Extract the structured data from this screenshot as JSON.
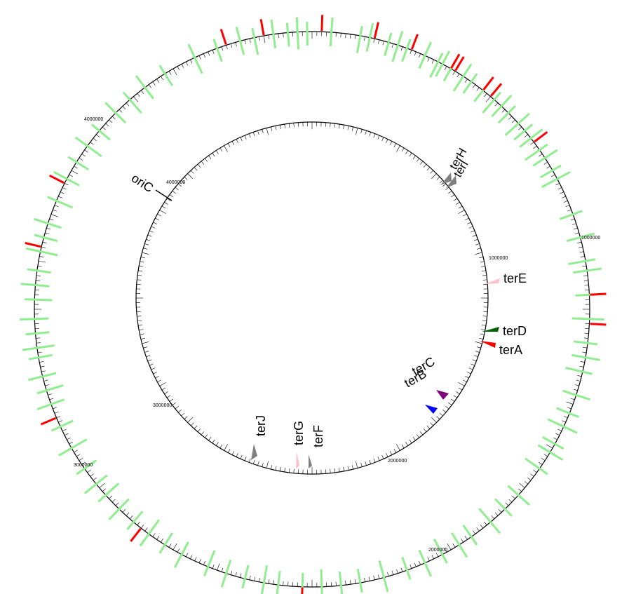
{
  "outer_map": {
    "tick_labels": [
      "1000000",
      "2000000",
      "3000000",
      "4000000"
    ],
    "colors": {
      "ring": "#000000",
      "green_feature": "#90ee90",
      "red_feature": "#ff0000"
    }
  },
  "inner_map": {
    "tick_labels": [
      "1000000",
      "2000000",
      "3000000",
      "4000000"
    ],
    "origin_label": "oriC",
    "ter_sites": [
      {
        "label": "terH",
        "color": "#808080"
      },
      {
        "label": "terI",
        "color": "#808080"
      },
      {
        "label": "terE",
        "color": "#ffc0cb"
      },
      {
        "label": "terD",
        "color": "#006400"
      },
      {
        "label": "terA",
        "color": "#ff0000"
      },
      {
        "label": "terC",
        "color": "#800080"
      },
      {
        "label": "terB",
        "color": "#0000ff"
      },
      {
        "label": "terF",
        "color": "#808080"
      },
      {
        "label": "terG",
        "color": "#ffc0cb"
      },
      {
        "label": "terJ",
        "color": "#808080"
      }
    ]
  }
}
